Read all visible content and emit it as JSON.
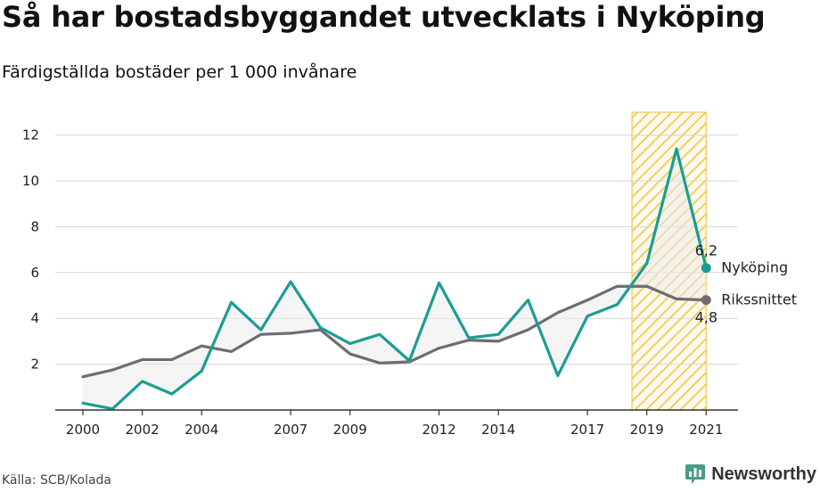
{
  "title": "Så har bostadsbyggandet utvecklats i Nyköping",
  "subtitle": "Färdigställda bostäder per 1 000 invånare",
  "source": "Källa: SCB/Kolada",
  "brand": "Newsworthy",
  "colors": {
    "nykoping": "#1a9e94",
    "riks": "#6e6d72",
    "highlight": "#f5c84c",
    "grid": "#d6d6d6"
  },
  "chart_data": {
    "type": "line",
    "x": [
      2000,
      2001,
      2002,
      2003,
      2004,
      2005,
      2006,
      2007,
      2008,
      2009,
      2010,
      2011,
      2012,
      2013,
      2014,
      2015,
      2016,
      2017,
      2018,
      2019,
      2020,
      2021
    ],
    "series": [
      {
        "name": "Nyköping",
        "values": [
          0.3,
          0.05,
          1.25,
          0.7,
          1.7,
          4.7,
          3.5,
          5.6,
          3.6,
          2.9,
          3.3,
          2.15,
          5.55,
          3.15,
          3.3,
          4.8,
          1.5,
          4.1,
          4.6,
          6.4,
          11.4,
          6.2
        ]
      },
      {
        "name": "Rikssnittet",
        "values": [
          1.45,
          1.75,
          2.2,
          2.2,
          2.8,
          2.55,
          3.3,
          3.35,
          3.5,
          2.45,
          2.05,
          2.1,
          2.7,
          3.05,
          3.0,
          3.5,
          4.25,
          4.8,
          5.4,
          5.4,
          4.85,
          4.8
        ]
      }
    ],
    "x_ticks": [
      "2000",
      "2002",
      "2004",
      "2007",
      "2009",
      "2012",
      "2014",
      "2017",
      "2019",
      "2021"
    ],
    "y_ticks": [
      "2",
      "4",
      "6",
      "8",
      "10",
      "12"
    ],
    "ylim": [
      0,
      13
    ],
    "highlight_range": [
      2019,
      2021
    ],
    "end_labels": {
      "nykoping_value": "6,2",
      "riks_value": "4,8"
    },
    "grid": true,
    "legend": "inline-right"
  }
}
